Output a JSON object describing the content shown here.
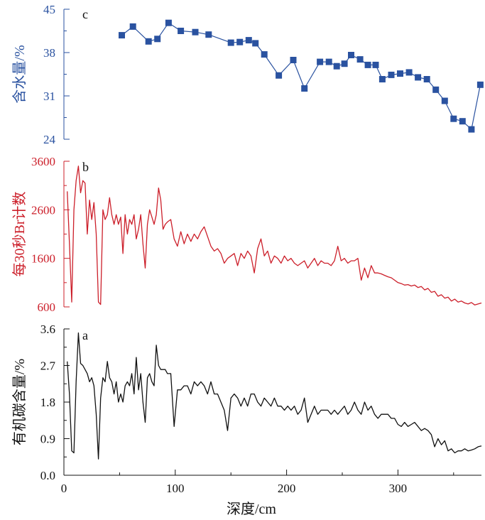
{
  "chart_data": [
    {
      "type": "scatter",
      "panel": "c",
      "ylabel": "含水量/%",
      "ylim": [
        24,
        45
      ],
      "yticks": [
        24,
        31,
        38,
        45
      ],
      "xlim": [
        0,
        375
      ],
      "color": "#2a52a0",
      "marker": "square",
      "connected": true,
      "x": [
        52,
        62,
        76,
        84,
        94,
        105,
        118,
        130,
        150,
        158,
        166,
        172,
        180,
        193,
        206,
        216,
        230,
        238,
        245,
        252,
        258,
        266,
        273,
        280,
        286,
        294,
        302,
        310,
        318,
        326,
        334,
        342,
        350,
        358,
        366,
        374
      ],
      "y": [
        40.8,
        42.2,
        39.8,
        40.2,
        42.8,
        41.5,
        41.3,
        40.9,
        39.6,
        39.7,
        40.0,
        39.5,
        37.7,
        34.3,
        36.8,
        32.2,
        36.5,
        36.5,
        35.8,
        36.2,
        37.6,
        36.9,
        36.0,
        36.0,
        33.7,
        34.4,
        34.6,
        34.8,
        34.0,
        33.7,
        32.0,
        30.2,
        27.3,
        26.9,
        25.6,
        32.8
      ]
    },
    {
      "type": "line",
      "panel": "b",
      "ylabel": "每30秒Br计数",
      "ylim": [
        600,
        3600
      ],
      "yticks": [
        600,
        1600,
        2600,
        3600
      ],
      "xlim": [
        0,
        375
      ],
      "color": "#cc1f2a",
      "x": [
        3,
        5,
        7,
        9,
        11,
        13,
        15,
        17,
        19,
        21,
        23,
        25,
        27,
        29,
        31,
        33,
        35,
        37,
        39,
        41,
        43,
        45,
        47,
        49,
        51,
        53,
        55,
        57,
        59,
        61,
        63,
        65,
        67,
        69,
        71,
        73,
        75,
        77,
        79,
        81,
        83,
        85,
        87,
        89,
        91,
        93,
        96,
        99,
        102,
        105,
        108,
        111,
        114,
        117,
        120,
        123,
        126,
        129,
        132,
        135,
        138,
        141,
        144,
        147,
        150,
        153,
        156,
        159,
        162,
        165,
        168,
        171,
        174,
        177,
        180,
        183,
        186,
        189,
        192,
        195,
        198,
        201,
        204,
        207,
        210,
        213,
        216,
        219,
        222,
        225,
        228,
        231,
        234,
        237,
        240,
        243,
        246,
        249,
        252,
        255,
        258,
        261,
        264,
        267,
        270,
        273,
        276,
        279,
        282,
        285,
        288,
        291,
        294,
        297,
        300,
        303,
        306,
        309,
        312,
        315,
        318,
        321,
        324,
        327,
        330,
        333,
        336,
        339,
        342,
        345,
        348,
        351,
        354,
        357,
        360,
        363,
        366,
        369,
        372,
        375
      ],
      "y": [
        2980,
        1900,
        700,
        2600,
        3200,
        3500,
        2950,
        3200,
        3150,
        2100,
        2800,
        2400,
        2750,
        2100,
        700,
        650,
        2600,
        2400,
        2500,
        2850,
        2500,
        2300,
        2500,
        2300,
        2450,
        1700,
        2500,
        2100,
        2400,
        2300,
        2500,
        2000,
        2200,
        2500,
        1900,
        1400,
        2300,
        2600,
        2450,
        2300,
        2500,
        3050,
        2800,
        2200,
        2300,
        2350,
        2400,
        2000,
        1850,
        2150,
        1900,
        2100,
        1950,
        2100,
        2000,
        2150,
        2250,
        2050,
        1850,
        1750,
        1800,
        1700,
        1500,
        1600,
        1650,
        1700,
        1450,
        1700,
        1600,
        1750,
        1650,
        1300,
        1800,
        2000,
        1650,
        1750,
        1500,
        1650,
        1600,
        1500,
        1650,
        1550,
        1600,
        1500,
        1450,
        1500,
        1550,
        1400,
        1500,
        1600,
        1450,
        1550,
        1500,
        1500,
        1450,
        1550,
        1850,
        1550,
        1600,
        1500,
        1550,
        1550,
        1600,
        1150,
        1400,
        1200,
        1450,
        1300,
        1300,
        1280,
        1250,
        1220,
        1200,
        1150,
        1100,
        1080,
        1050,
        1060,
        1030,
        1050,
        1000,
        1020,
        950,
        980,
        900,
        920,
        820,
        850,
        780,
        800,
        720,
        760,
        700,
        720,
        680,
        660,
        690,
        640,
        660,
        680
      ]
    },
    {
      "type": "line",
      "panel": "a",
      "ylabel": "有机碳含量/%",
      "xlabel": "深度/cm",
      "ylim": [
        0.0,
        3.6
      ],
      "yticks": [
        0.0,
        0.9,
        1.8,
        2.7,
        3.6
      ],
      "xlim": [
        0,
        375
      ],
      "xticks": [
        0,
        100,
        200,
        300
      ],
      "color": "#111111",
      "x": [
        3,
        5,
        7,
        9,
        11,
        13,
        15,
        17,
        19,
        21,
        23,
        25,
        27,
        29,
        31,
        33,
        35,
        37,
        39,
        41,
        43,
        45,
        47,
        49,
        51,
        53,
        55,
        57,
        59,
        61,
        63,
        65,
        67,
        69,
        71,
        73,
        75,
        77,
        79,
        81,
        83,
        85,
        87,
        89,
        91,
        93,
        96,
        99,
        102,
        105,
        108,
        111,
        114,
        117,
        120,
        123,
        126,
        129,
        132,
        135,
        138,
        141,
        144,
        147,
        150,
        153,
        156,
        159,
        162,
        165,
        168,
        171,
        174,
        177,
        180,
        183,
        186,
        189,
        192,
        195,
        198,
        201,
        204,
        207,
        210,
        213,
        216,
        219,
        222,
        225,
        228,
        231,
        234,
        237,
        240,
        243,
        246,
        249,
        252,
        255,
        258,
        261,
        264,
        267,
        270,
        273,
        276,
        279,
        282,
        285,
        288,
        291,
        294,
        297,
        300,
        303,
        306,
        309,
        312,
        315,
        318,
        321,
        324,
        327,
        330,
        333,
        336,
        339,
        342,
        345,
        348,
        351,
        354,
        357,
        360,
        363,
        366,
        369,
        372,
        375
      ],
      "y": [
        2.8,
        2.0,
        0.6,
        0.55,
        2.3,
        3.5,
        2.75,
        2.7,
        2.6,
        2.5,
        2.3,
        2.4,
        2.2,
        1.5,
        0.4,
        1.9,
        2.4,
        2.3,
        2.8,
        2.4,
        2.3,
        2.0,
        2.3,
        1.8,
        2.0,
        1.8,
        2.2,
        2.3,
        2.2,
        2.5,
        2.0,
        2.9,
        2.1,
        2.5,
        1.8,
        1.3,
        2.4,
        2.5,
        2.3,
        2.2,
        3.2,
        2.7,
        2.6,
        2.6,
        2.6,
        2.5,
        2.5,
        1.2,
        2.1,
        2.1,
        2.2,
        2.2,
        2.0,
        2.3,
        2.2,
        2.3,
        2.2,
        2.0,
        2.3,
        2.0,
        2.0,
        1.8,
        1.6,
        1.1,
        1.9,
        2.0,
        1.9,
        1.7,
        1.9,
        1.7,
        2.0,
        2.0,
        1.8,
        1.7,
        1.9,
        1.8,
        1.7,
        1.9,
        1.7,
        1.7,
        1.6,
        1.7,
        1.6,
        1.7,
        1.5,
        1.6,
        1.9,
        1.3,
        1.5,
        1.7,
        1.5,
        1.6,
        1.6,
        1.6,
        1.5,
        1.6,
        1.5,
        1.6,
        1.7,
        1.5,
        1.6,
        1.8,
        1.6,
        1.5,
        1.8,
        1.6,
        1.7,
        1.5,
        1.4,
        1.5,
        1.5,
        1.5,
        1.4,
        1.4,
        1.25,
        1.2,
        1.3,
        1.2,
        1.25,
        1.3,
        1.2,
        1.1,
        1.15,
        1.1,
        1.0,
        0.7,
        0.9,
        0.75,
        0.85,
        0.6,
        0.65,
        0.55,
        0.6,
        0.6,
        0.65,
        0.6,
        0.62,
        0.65,
        0.7,
        0.72
      ]
    }
  ]
}
